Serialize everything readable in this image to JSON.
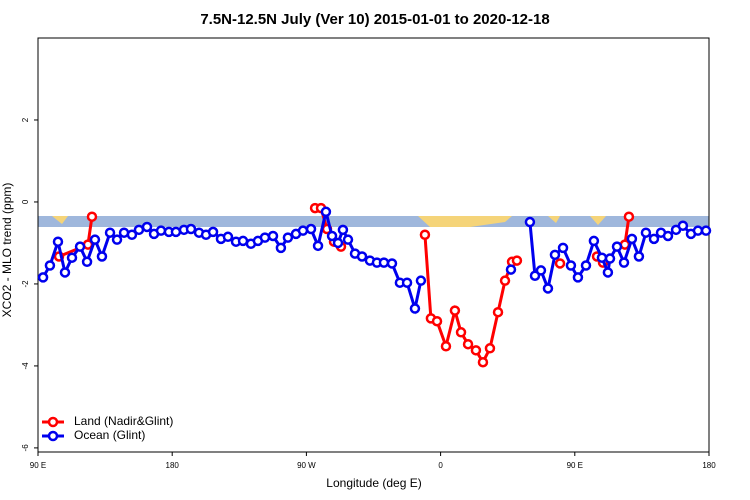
{
  "chart_data": {
    "type": "line",
    "title": "7.5N-12.5N July (Ver 10)   2015-01-01 to 2020-12-18",
    "x_label": "Longitude (deg E)",
    "y_label": "XCO2 - MLO trend (ppm)",
    "xlim": [
      90,
      540
    ],
    "xticks": [
      {
        "value": 90,
        "label": "90 E"
      },
      {
        "value": 180,
        "label": "180"
      },
      {
        "value": 270,
        "label": "90 W"
      },
      {
        "value": 360,
        "label": "0"
      },
      {
        "value": 450,
        "label": "90 E"
      },
      {
        "value": 540,
        "label": "180"
      }
    ],
    "ylim": [
      -6.1,
      4
    ],
    "yticks": [
      -6,
      -4,
      -2,
      0,
      2
    ],
    "legend": "bottom-left",
    "series": [
      {
        "name": "Land (Nadir&Glint)",
        "color": "#ff0000",
        "x": [
          104.1,
          123.5,
          126.2,
          null,
          275.8,
          279.8,
          283.8,
          288.5,
          293.2,
          null,
          349.5,
          353.5,
          357.6,
          363.6,
          369.6,
          373.7,
          378.4,
          383.7,
          388.4,
          393.1,
          398.5,
          403.2,
          407.9,
          411.2,
          null,
          440.1,
          null,
          464.9,
          468.9,
          null,
          483.6,
          486.3
        ],
        "values": [
          -1.33,
          -1.04,
          -0.36,
          null,
          -0.15,
          -0.15,
          -0.66,
          -0.97,
          -1.09,
          null,
          -0.8,
          -2.84,
          -2.91,
          -3.52,
          -2.65,
          -3.18,
          -3.47,
          -3.62,
          -3.91,
          -3.57,
          -2.69,
          -1.92,
          -1.46,
          -1.43,
          null,
          -1.5,
          null,
          -1.33,
          -1.48,
          null,
          -1.04,
          -0.36
        ]
      },
      {
        "name": "Ocean (Glint)",
        "color": "#0000ee",
        "x": [
          93.4,
          98.0,
          103.4,
          108.1,
          112.8,
          118.2,
          122.9,
          128.2,
          132.9,
          138.3,
          143.0,
          147.7,
          153.0,
          157.7,
          163.1,
          167.8,
          172.5,
          177.8,
          182.5,
          187.9,
          192.6,
          198.0,
          202.7,
          207.4,
          212.7,
          217.4,
          222.8,
          227.5,
          232.8,
          237.5,
          242.2,
          247.6,
          252.9,
          257.6,
          263.0,
          267.7,
          273.1,
          277.8,
          283.1,
          287.2,
          291.2,
          294.5,
          297.9,
          302.6,
          307.3,
          312.6,
          317.3,
          322.0,
          327.4,
          332.7,
          337.5,
          342.8,
          346.8,
          null,
          407.2,
          null,
          419.9,
          423.3,
          427.3,
          432.0,
          436.7,
          442.1,
          447.4,
          452.1,
          457.5,
          462.8,
          468.2,
          472.2,
          473.6,
          478.3,
          483.0,
          488.3,
          493.0,
          497.7,
          503.1,
          507.8,
          512.5,
          517.9,
          522.5,
          527.9,
          532.6,
          538.0
        ],
        "values": [
          -1.84,
          -1.55,
          -0.97,
          -1.72,
          -1.36,
          -1.09,
          -1.46,
          -0.92,
          -1.33,
          -0.75,
          -0.92,
          -0.75,
          -0.8,
          -0.68,
          -0.61,
          -0.78,
          -0.7,
          -0.73,
          -0.73,
          -0.68,
          -0.66,
          -0.75,
          -0.8,
          -0.73,
          -0.9,
          -0.85,
          -0.97,
          -0.95,
          -1.02,
          -0.95,
          -0.87,
          -0.83,
          -1.12,
          -0.87,
          -0.78,
          -0.7,
          -0.66,
          -1.07,
          -0.24,
          -0.83,
          -1.0,
          -0.68,
          -0.92,
          -1.26,
          -1.33,
          -1.43,
          -1.48,
          -1.48,
          -1.5,
          -1.97,
          -1.97,
          -2.6,
          -1.92,
          null,
          -1.65,
          null,
          -0.49,
          -1.8,
          -1.67,
          -2.11,
          -1.29,
          -1.12,
          -1.55,
          -1.84,
          -1.55,
          -0.95,
          -1.36,
          -1.72,
          -1.38,
          -1.09,
          -1.48,
          -0.9,
          -1.33,
          -0.75,
          -0.9,
          -0.75,
          -0.83,
          -0.68,
          -0.58,
          -0.78,
          -0.7,
          -0.7
        ]
      }
    ]
  }
}
